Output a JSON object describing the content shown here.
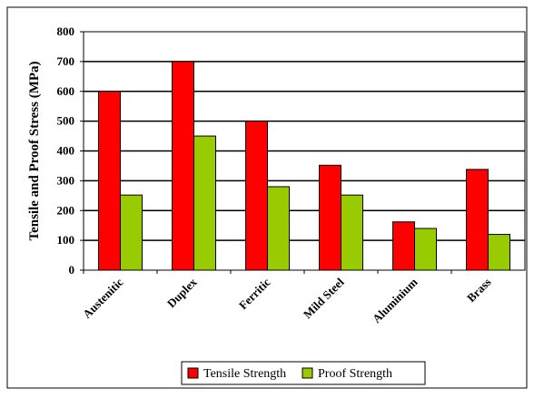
{
  "chart_data": {
    "type": "bar",
    "categories": [
      "Austenitic",
      "Duplex",
      "Ferritic",
      "Mild Steel",
      "Aluminium",
      "Brass"
    ],
    "series": [
      {
        "name": "Tensile Strength",
        "values": [
          600,
          700,
          500,
          352,
          162,
          338
        ],
        "color": "#ff0000"
      },
      {
        "name": "Proof Strength",
        "values": [
          252,
          450,
          280,
          252,
          140,
          120
        ],
        "color": "#99cc00"
      }
    ],
    "title": "",
    "xlabel": "",
    "ylabel": "Tensile and Proof Stress (MPa)",
    "ylim": [
      0,
      800
    ],
    "yticks": [
      0,
      100,
      200,
      300,
      400,
      500,
      600,
      700,
      800
    ],
    "grid": true,
    "legend_position": "bottom"
  }
}
